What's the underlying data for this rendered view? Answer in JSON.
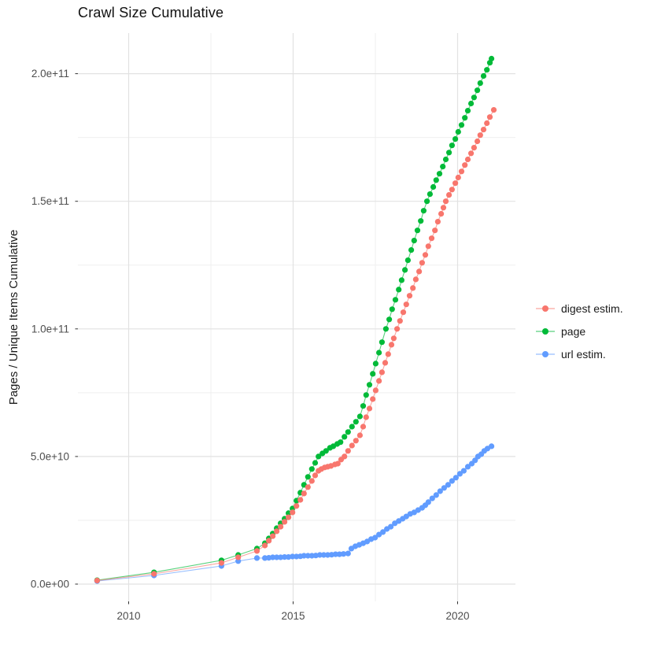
{
  "title": "Crawl Size Cumulative",
  "axes": {
    "y_title": "Pages / Unique Items Cumulative",
    "x_tick_labels": [
      "2010",
      "2015",
      "2020"
    ],
    "x_tick_values": [
      2010,
      2015,
      2020
    ],
    "x_minor_values": [
      2012.5,
      2017.5
    ],
    "y_tick_labels": [
      "0.0e+00",
      "5.0e+10",
      "1.0e+11",
      "1.5e+11",
      "2.0e+11"
    ],
    "y_tick_values": [
      0,
      50,
      100,
      150,
      200
    ],
    "y_minor_values": [
      25,
      75,
      125,
      175
    ],
    "tick_color": "#333333",
    "label_color": "#4d4d4d",
    "grid_major_color": "#e2e2e2",
    "grid_minor_color": "#efefef"
  },
  "legend": {
    "items": [
      {
        "label": "digest estim.",
        "color": "#F8766D"
      },
      {
        "label": "page",
        "color": "#00BA38"
      },
      {
        "label": "url estim.",
        "color": "#619CFF"
      }
    ]
  },
  "chart_data": {
    "type": "scatter",
    "title": "Crawl Size Cumulative",
    "xlabel": "",
    "ylabel": "Pages / Unique Items Cumulative",
    "x_unit": "year",
    "y_scale": 1000000000.0,
    "y_note": "point y-values are in billions (multiply by 1e9)",
    "xlim": [
      2008.46,
      2021.76
    ],
    "ylim_e9": [
      -6.8,
      216
    ],
    "grid": true,
    "legend_position": "right",
    "series": [
      {
        "name": "digest estim.",
        "color": "#F8766D",
        "points": [
          [
            2009.04,
            1.4
          ],
          [
            2010.77,
            4.0
          ],
          [
            2012.82,
            8.3
          ],
          [
            2013.33,
            10.5
          ],
          [
            2013.9,
            13.0
          ],
          [
            2014.14,
            15.1
          ],
          [
            2014.26,
            17.0
          ],
          [
            2014.38,
            18.8
          ],
          [
            2014.5,
            20.7
          ],
          [
            2014.62,
            22.5
          ],
          [
            2014.74,
            24.4
          ],
          [
            2014.86,
            26.2
          ],
          [
            2014.98,
            28.1
          ],
          [
            2015.1,
            30.6
          ],
          [
            2015.22,
            33.0
          ],
          [
            2015.33,
            35.5
          ],
          [
            2015.45,
            38.0
          ],
          [
            2015.57,
            40.4
          ],
          [
            2015.67,
            42.6
          ],
          [
            2015.77,
            44.4
          ],
          [
            2015.86,
            45.1
          ],
          [
            2015.96,
            45.7
          ],
          [
            2016.05,
            46.0
          ],
          [
            2016.15,
            46.3
          ],
          [
            2016.27,
            46.9
          ],
          [
            2016.36,
            47.2
          ],
          [
            2016.46,
            48.8
          ],
          [
            2016.56,
            50.0
          ],
          [
            2016.67,
            52.2
          ],
          [
            2016.79,
            54.3
          ],
          [
            2016.91,
            56.2
          ],
          [
            2017.03,
            58.3
          ],
          [
            2017.13,
            61.7
          ],
          [
            2017.22,
            65.4
          ],
          [
            2017.32,
            68.8
          ],
          [
            2017.42,
            72.5
          ],
          [
            2017.51,
            75.9
          ],
          [
            2017.61,
            79.6
          ],
          [
            2017.7,
            83.0
          ],
          [
            2017.8,
            86.7
          ],
          [
            2017.89,
            90.1
          ],
          [
            2017.99,
            93.8
          ],
          [
            2018.06,
            96.3
          ],
          [
            2018.16,
            100.0
          ],
          [
            2018.25,
            103.1
          ],
          [
            2018.35,
            106.5
          ],
          [
            2018.44,
            109.6
          ],
          [
            2018.54,
            113.0
          ],
          [
            2018.64,
            116.0
          ],
          [
            2018.73,
            119.4
          ],
          [
            2018.83,
            122.5
          ],
          [
            2018.92,
            125.9
          ],
          [
            2019.02,
            129.0
          ],
          [
            2019.11,
            132.4
          ],
          [
            2019.21,
            135.5
          ],
          [
            2019.31,
            138.6
          ],
          [
            2019.4,
            142.0
          ],
          [
            2019.5,
            145.1
          ],
          [
            2019.57,
            147.5
          ],
          [
            2019.64,
            150.0
          ],
          [
            2019.74,
            152.5
          ],
          [
            2019.83,
            154.6
          ],
          [
            2019.93,
            157.1
          ],
          [
            2020.02,
            159.3
          ],
          [
            2020.12,
            161.7
          ],
          [
            2020.22,
            164.2
          ],
          [
            2020.31,
            166.4
          ],
          [
            2020.41,
            168.8
          ],
          [
            2020.5,
            171.0
          ],
          [
            2020.6,
            173.5
          ],
          [
            2020.69,
            175.9
          ],
          [
            2020.79,
            178.1
          ],
          [
            2020.89,
            180.6
          ],
          [
            2020.98,
            183.0
          ],
          [
            2021.1,
            185.8
          ]
        ]
      },
      {
        "name": "page",
        "color": "#00BA38",
        "points": [
          [
            2009.04,
            1.5
          ],
          [
            2010.77,
            4.6
          ],
          [
            2012.82,
            9.3
          ],
          [
            2013.33,
            11.4
          ],
          [
            2013.9,
            13.9
          ],
          [
            2014.14,
            16.0
          ],
          [
            2014.26,
            17.9
          ],
          [
            2014.38,
            19.8
          ],
          [
            2014.5,
            21.9
          ],
          [
            2014.62,
            23.8
          ],
          [
            2014.74,
            25.6
          ],
          [
            2014.86,
            27.8
          ],
          [
            2014.98,
            29.6
          ],
          [
            2015.1,
            32.7
          ],
          [
            2015.22,
            35.8
          ],
          [
            2015.33,
            38.9
          ],
          [
            2015.45,
            42.0
          ],
          [
            2015.57,
            45.1
          ],
          [
            2015.67,
            47.5
          ],
          [
            2015.77,
            50.0
          ],
          [
            2015.89,
            51.2
          ],
          [
            2016.0,
            52.2
          ],
          [
            2016.12,
            53.4
          ],
          [
            2016.22,
            54.0
          ],
          [
            2016.34,
            54.9
          ],
          [
            2016.44,
            55.6
          ],
          [
            2016.56,
            57.7
          ],
          [
            2016.67,
            59.6
          ],
          [
            2016.79,
            61.7
          ],
          [
            2016.91,
            63.6
          ],
          [
            2017.03,
            65.7
          ],
          [
            2017.13,
            69.8
          ],
          [
            2017.22,
            74.1
          ],
          [
            2017.32,
            78.1
          ],
          [
            2017.42,
            82.4
          ],
          [
            2017.51,
            86.4
          ],
          [
            2017.61,
            90.7
          ],
          [
            2017.7,
            94.8
          ],
          [
            2017.82,
            100.0
          ],
          [
            2017.92,
            103.7
          ],
          [
            2018.01,
            107.7
          ],
          [
            2018.11,
            111.4
          ],
          [
            2018.21,
            115.4
          ],
          [
            2018.3,
            119.1
          ],
          [
            2018.4,
            123.1
          ],
          [
            2018.49,
            126.9
          ],
          [
            2018.59,
            130.9
          ],
          [
            2018.68,
            134.6
          ],
          [
            2018.78,
            138.6
          ],
          [
            2018.88,
            142.3
          ],
          [
            2018.97,
            146.3
          ],
          [
            2019.07,
            150.0
          ],
          [
            2019.16,
            152.8
          ],
          [
            2019.26,
            155.6
          ],
          [
            2019.35,
            158.3
          ],
          [
            2019.45,
            160.8
          ],
          [
            2019.55,
            163.6
          ],
          [
            2019.64,
            166.4
          ],
          [
            2019.74,
            169.1
          ],
          [
            2019.83,
            171.9
          ],
          [
            2019.93,
            174.4
          ],
          [
            2020.02,
            177.2
          ],
          [
            2020.12,
            179.9
          ],
          [
            2020.22,
            182.7
          ],
          [
            2020.31,
            185.5
          ],
          [
            2020.41,
            188.3
          ],
          [
            2020.5,
            190.7
          ],
          [
            2020.6,
            193.5
          ],
          [
            2020.69,
            196.3
          ],
          [
            2020.79,
            199.1
          ],
          [
            2020.89,
            201.5
          ],
          [
            2020.98,
            204.3
          ],
          [
            2021.03,
            205.9
          ]
        ]
      },
      {
        "name": "url estim.",
        "color": "#619CFF",
        "points": [
          [
            2009.04,
            1.2
          ],
          [
            2010.77,
            3.4
          ],
          [
            2012.82,
            7.1
          ],
          [
            2013.33,
            9.0
          ],
          [
            2013.9,
            10.2
          ],
          [
            2014.14,
            10.2
          ],
          [
            2014.26,
            10.3
          ],
          [
            2014.38,
            10.5
          ],
          [
            2014.5,
            10.5
          ],
          [
            2014.62,
            10.5
          ],
          [
            2014.74,
            10.6
          ],
          [
            2014.86,
            10.6
          ],
          [
            2014.98,
            10.8
          ],
          [
            2015.1,
            10.8
          ],
          [
            2015.22,
            10.9
          ],
          [
            2015.33,
            11.1
          ],
          [
            2015.45,
            11.1
          ],
          [
            2015.57,
            11.1
          ],
          [
            2015.69,
            11.2
          ],
          [
            2015.81,
            11.4
          ],
          [
            2015.93,
            11.4
          ],
          [
            2016.05,
            11.4
          ],
          [
            2016.17,
            11.5
          ],
          [
            2016.29,
            11.7
          ],
          [
            2016.41,
            11.7
          ],
          [
            2016.53,
            11.8
          ],
          [
            2016.67,
            12.0
          ],
          [
            2016.77,
            13.9
          ],
          [
            2016.89,
            14.8
          ],
          [
            2017.01,
            15.4
          ],
          [
            2017.13,
            16.0
          ],
          [
            2017.25,
            16.7
          ],
          [
            2017.37,
            17.6
          ],
          [
            2017.49,
            18.2
          ],
          [
            2017.61,
            19.4
          ],
          [
            2017.73,
            20.4
          ],
          [
            2017.85,
            21.6
          ],
          [
            2017.97,
            22.5
          ],
          [
            2018.09,
            23.8
          ],
          [
            2018.21,
            24.7
          ],
          [
            2018.33,
            25.6
          ],
          [
            2018.44,
            26.5
          ],
          [
            2018.56,
            27.5
          ],
          [
            2018.68,
            28.1
          ],
          [
            2018.8,
            29.0
          ],
          [
            2018.92,
            29.9
          ],
          [
            2019.02,
            30.9
          ],
          [
            2019.11,
            32.1
          ],
          [
            2019.23,
            33.6
          ],
          [
            2019.35,
            34.9
          ],
          [
            2019.47,
            36.4
          ],
          [
            2019.59,
            37.7
          ],
          [
            2019.71,
            38.9
          ],
          [
            2019.83,
            40.4
          ],
          [
            2019.95,
            41.7
          ],
          [
            2020.07,
            43.2
          ],
          [
            2020.19,
            44.4
          ],
          [
            2020.31,
            46.0
          ],
          [
            2020.43,
            47.2
          ],
          [
            2020.53,
            48.5
          ],
          [
            2020.62,
            50.0
          ],
          [
            2020.72,
            50.9
          ],
          [
            2020.81,
            52.2
          ],
          [
            2020.91,
            53.1
          ],
          [
            2021.03,
            54.0
          ]
        ]
      }
    ]
  }
}
